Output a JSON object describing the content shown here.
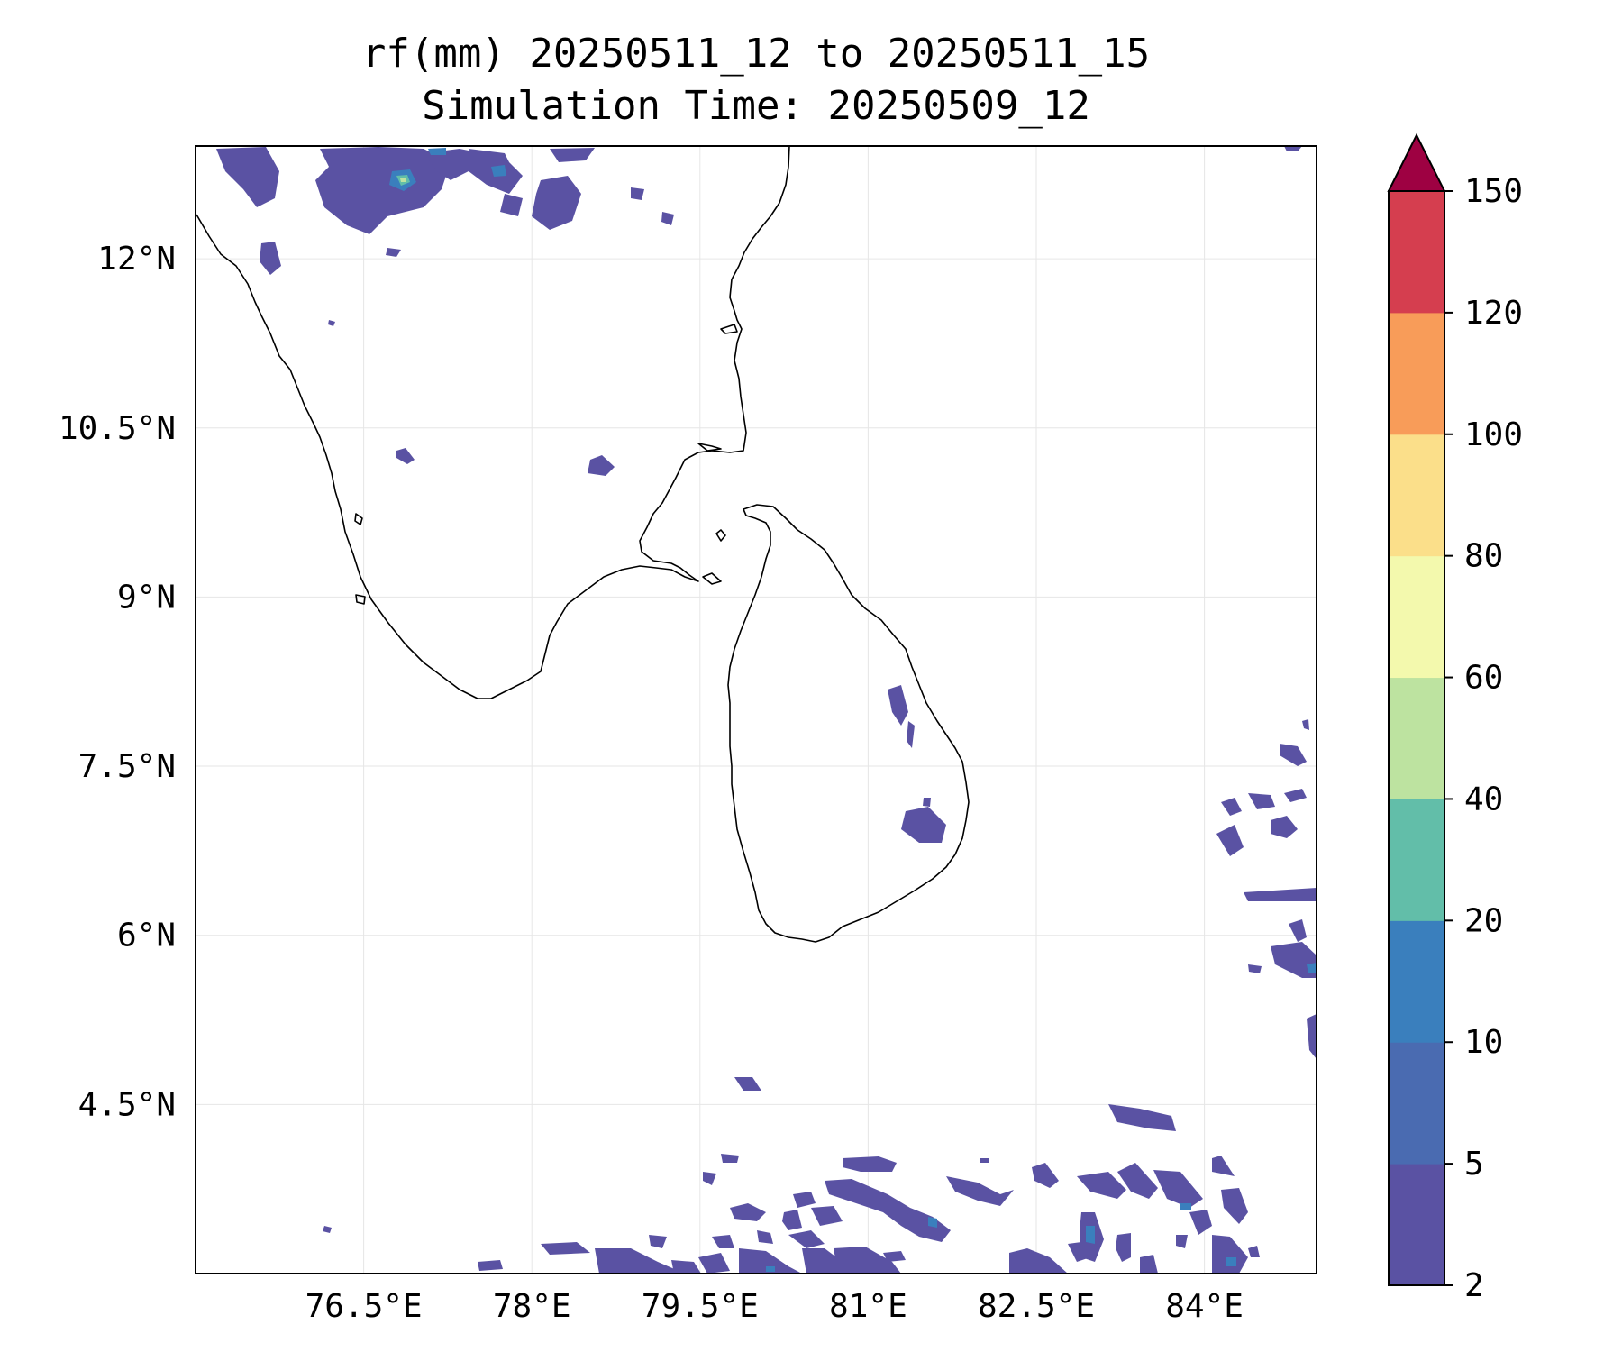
{
  "title": {
    "line1": "rf(mm) 20250511_12 to 20250511_15",
    "line2": "Simulation Time: 20250509_12"
  },
  "map": {
    "extent": {
      "lon_min": 75.0,
      "lon_max": 85.0,
      "lat_min": 3.0,
      "lat_max": 13.0
    },
    "lon_ticks": [
      {
        "value": 76.5,
        "label": "76.5°E"
      },
      {
        "value": 78.0,
        "label": "78°E"
      },
      {
        "value": 79.5,
        "label": "79.5°E"
      },
      {
        "value": 81.0,
        "label": "81°E"
      },
      {
        "value": 82.5,
        "label": "82.5°E"
      },
      {
        "value": 84.0,
        "label": "84°E"
      }
    ],
    "lat_ticks": [
      {
        "value": 12.0,
        "label": "12°N"
      },
      {
        "value": 10.5,
        "label": "10.5°N"
      },
      {
        "value": 9.0,
        "label": "9°N"
      },
      {
        "value": 7.5,
        "label": "7.5°N"
      },
      {
        "value": 6.0,
        "label": "6°N"
      },
      {
        "value": 4.5,
        "label": "4.5°N"
      }
    ],
    "gridlines": true,
    "coastline_color": "#000000"
  },
  "colorbar": {
    "levels": [
      {
        "value": 2,
        "label": "2"
      },
      {
        "value": 5,
        "label": "5"
      },
      {
        "value": 10,
        "label": "10"
      },
      {
        "value": 20,
        "label": "20"
      },
      {
        "value": 40,
        "label": "40"
      },
      {
        "value": 60,
        "label": "60"
      },
      {
        "value": 80,
        "label": "80"
      },
      {
        "value": 100,
        "label": "100"
      },
      {
        "value": 120,
        "label": "120"
      },
      {
        "value": 150,
        "label": "150"
      }
    ],
    "colors": [
      "#5a52a3",
      "#4a6bb1",
      "#3a7fbd",
      "#62bea9",
      "#bde3a0",
      "#f3f9ad",
      "#fbdf8a",
      "#f89c59",
      "#d53e4f"
    ],
    "extend_color": "#9e0142",
    "extend": "max"
  }
}
